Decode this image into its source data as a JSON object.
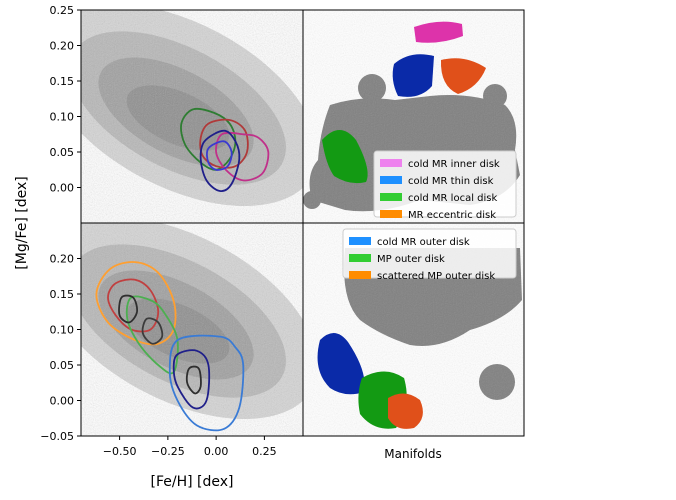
{
  "figure": {
    "ylabel": "[Mg/Fe] [dex]",
    "xlabel_left": "[Fe/H] [dex]",
    "xlabel_right": "Manifolds"
  },
  "colors": {
    "density": "#8a8a8a",
    "manifold_background": "#808080",
    "pink": "#ee82ee",
    "blue": "#1e90ff",
    "green": "#32cd32",
    "orange": "#ff8c00",
    "pink_fill": "#dd33aa",
    "blue_fill": "#0a2aa8",
    "green_fill": "#139a13",
    "orange_fill": "#e0501a"
  },
  "chart_data": [
    {
      "type": "scatter",
      "panel": "top-left",
      "description_source": "density map of [Mg/Fe] vs [Fe/H] with contours",
      "ylim": [
        -0.05,
        0.25
      ],
      "yticks": [
        "0.25",
        "0.20",
        "0.15",
        "0.10",
        "0.05",
        "0.00"
      ],
      "xlim": [
        -0.7,
        0.45
      ],
      "contours": [
        {
          "color": "#2e7d32",
          "series": "cold MR local disk",
          "points": [
            [
              -0.12,
              0.11
            ],
            [
              -0.01,
              0.105
            ],
            [
              0.07,
              0.09
            ],
            [
              0.1,
              0.065
            ],
            [
              0.07,
              0.04
            ],
            [
              0.0,
              0.025
            ],
            [
              -0.08,
              0.035
            ],
            [
              -0.16,
              0.06
            ],
            [
              -0.18,
              0.09
            ]
          ]
        },
        {
          "color": "#b03a3a",
          "series": "MR eccentric disk",
          "points": [
            [
              -0.04,
              0.09
            ],
            [
              0.07,
              0.095
            ],
            [
              0.15,
              0.08
            ],
            [
              0.16,
              0.05
            ],
            [
              0.1,
              0.03
            ],
            [
              0.0,
              0.03
            ],
            [
              -0.07,
              0.045
            ],
            [
              -0.08,
              0.07
            ]
          ]
        },
        {
          "color": "#c0308a",
          "series": "cold MR inner disk",
          "points": [
            [
              0.03,
              0.075
            ],
            [
              0.14,
              0.075
            ],
            [
              0.22,
              0.07
            ],
            [
              0.27,
              0.05
            ],
            [
              0.24,
              0.02
            ],
            [
              0.14,
              0.01
            ],
            [
              0.05,
              0.025
            ],
            [
              0.0,
              0.05
            ]
          ]
        },
        {
          "color": "#1f1f8a",
          "series": "cold MR thin disk",
          "points": [
            [
              -0.06,
              0.065
            ],
            [
              0.04,
              0.08
            ],
            [
              0.1,
              0.065
            ],
            [
              0.12,
              0.04
            ],
            [
              0.08,
              0.005
            ],
            [
              0.02,
              -0.005
            ],
            [
              -0.05,
              0.01
            ],
            [
              -0.08,
              0.04
            ]
          ]
        },
        {
          "color": "#3a3ad0",
          "series": "cold MR thin disk",
          "points": [
            [
              -0.04,
              0.055
            ],
            [
              0.04,
              0.065
            ],
            [
              0.08,
              0.05
            ],
            [
              0.06,
              0.03
            ],
            [
              0.0,
              0.025
            ],
            [
              -0.04,
              0.035
            ]
          ]
        }
      ]
    },
    {
      "type": "scatter",
      "panel": "bottom-left",
      "ylim": [
        -0.05,
        0.25
      ],
      "yticks": [
        "0.20",
        "0.15",
        "0.10",
        "0.05",
        "0.00",
        "−0.05"
      ],
      "xlim": [
        -0.7,
        0.45
      ],
      "xticks": [
        "−0.50",
        "−0.25",
        "0.00",
        "0.25"
      ],
      "xtick_values": [
        -0.5,
        -0.25,
        0.0,
        0.25
      ],
      "contours": [
        {
          "color": "#ff9f30",
          "series": "scattered MP outer disk",
          "points": [
            [
              -0.55,
              0.185
            ],
            [
              -0.42,
              0.195
            ],
            [
              -0.3,
              0.18
            ],
            [
              -0.22,
              0.14
            ],
            [
              -0.22,
              0.1
            ],
            [
              -0.3,
              0.08
            ],
            [
              -0.42,
              0.085
            ],
            [
              -0.56,
              0.11
            ],
            [
              -0.62,
              0.15
            ]
          ]
        },
        {
          "color": "#c04040",
          "series": "scattered MP outer disk",
          "points": [
            [
              -0.52,
              0.165
            ],
            [
              -0.42,
              0.17
            ],
            [
              -0.34,
              0.155
            ],
            [
              -0.3,
              0.125
            ],
            [
              -0.34,
              0.1
            ],
            [
              -0.44,
              0.1
            ],
            [
              -0.52,
              0.12
            ],
            [
              -0.56,
              0.145
            ]
          ]
        },
        {
          "color": "#4caf50",
          "series": "MP outer disk",
          "points": [
            [
              -0.44,
              0.145
            ],
            [
              -0.33,
              0.14
            ],
            [
              -0.26,
              0.12
            ],
            [
              -0.2,
              0.085
            ],
            [
              -0.22,
              0.04
            ],
            [
              -0.3,
              0.05
            ],
            [
              -0.4,
              0.08
            ],
            [
              -0.46,
              0.115
            ]
          ]
        },
        {
          "color": "#2f2f2f",
          "series": "scattered MP outer disk",
          "points": [
            [
              -0.49,
              0.145
            ],
            [
              -0.43,
              0.145
            ],
            [
              -0.41,
              0.125
            ],
            [
              -0.45,
              0.11
            ],
            [
              -0.5,
              0.12
            ]
          ]
        },
        {
          "color": "#3c3c3c",
          "series": "MP outer disk",
          "points": [
            [
              -0.36,
              0.115
            ],
            [
              -0.3,
              0.11
            ],
            [
              -0.28,
              0.09
            ],
            [
              -0.33,
              0.08
            ],
            [
              -0.38,
              0.095
            ]
          ]
        },
        {
          "color": "#3a7bd5",
          "series": "cold MR outer disk",
          "points": [
            [
              -0.2,
              0.085
            ],
            [
              0.02,
              0.09
            ],
            [
              0.1,
              0.075
            ],
            [
              0.14,
              0.05
            ],
            [
              0.12,
              -0.01
            ],
            [
              0.04,
              -0.04
            ],
            [
              -0.1,
              -0.035
            ],
            [
              -0.2,
              0.0
            ],
            [
              -0.24,
              0.04
            ]
          ]
        },
        {
          "color": "#1f1f8a",
          "series": "cold MR outer disk",
          "points": [
            [
              -0.2,
              0.065
            ],
            [
              -0.1,
              0.07
            ],
            [
              -0.04,
              0.05
            ],
            [
              -0.05,
              0.0
            ],
            [
              -0.12,
              -0.01
            ],
            [
              -0.2,
              0.02
            ],
            [
              -0.22,
              0.045
            ]
          ]
        },
        {
          "color": "#2f2f2f",
          "series": "cold MR outer disk",
          "points": [
            [
              -0.14,
              0.045
            ],
            [
              -0.09,
              0.045
            ],
            [
              -0.08,
              0.02
            ],
            [
              -0.11,
              0.01
            ],
            [
              -0.15,
              0.025
            ]
          ]
        }
      ]
    },
    {
      "type": "scatter",
      "panel": "top-right",
      "legend_position": "lower right",
      "legend": [
        {
          "label": "cold MR inner disk",
          "color": "#ee82ee"
        },
        {
          "label": "cold MR thin disk",
          "color": "#1e90ff"
        },
        {
          "label": "cold MR local disk",
          "color": "#32cd32"
        },
        {
          "label": "MR eccentric disk",
          "color": "#ff8c00"
        }
      ]
    },
    {
      "type": "scatter",
      "panel": "bottom-right",
      "legend_position": "upper right",
      "legend": [
        {
          "label": "cold MR outer disk",
          "color": "#1e90ff"
        },
        {
          "label": "MP outer disk",
          "color": "#32cd32"
        },
        {
          "label": "scattered MP outer disk",
          "color": "#ff8c00"
        }
      ]
    }
  ]
}
